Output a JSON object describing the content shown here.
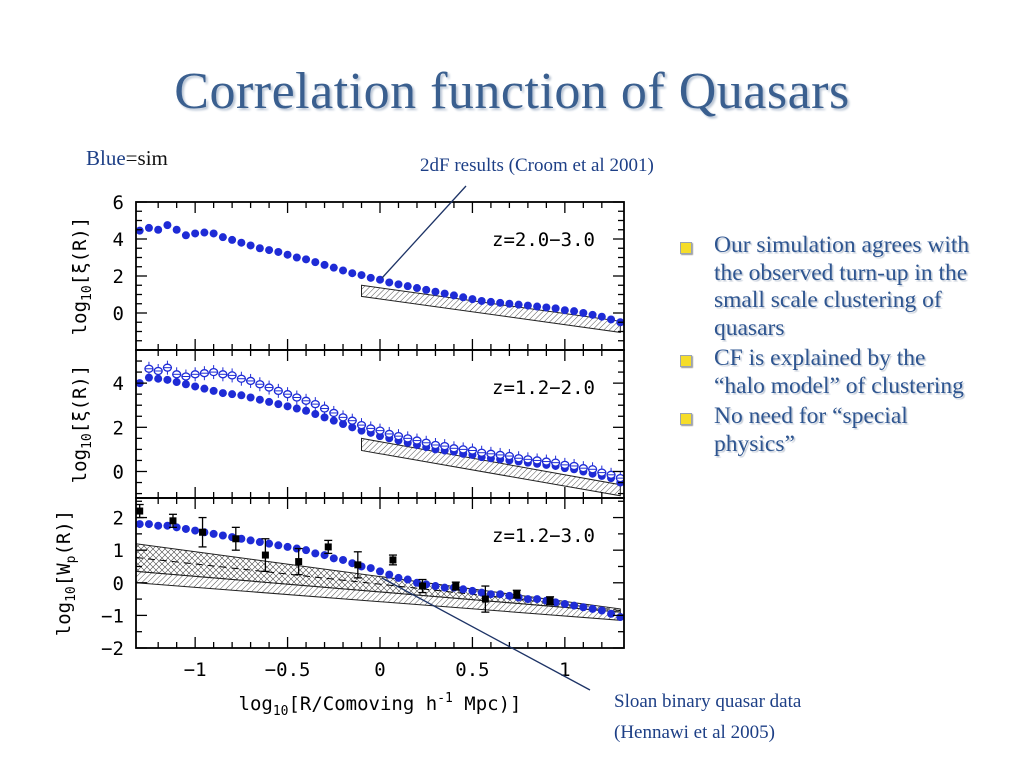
{
  "slide": {
    "title": "Correlation function of Quasars",
    "blue_label": "Blue",
    "blue_eq": "=",
    "blue_value": "sim",
    "annotation_top": "2dF results (Croom et al 2001)",
    "annotation_bottom_line1": "Sloan binary quasar data",
    "annotation_bottom_line2": "(Hennawi et al 2005)",
    "bullets": [
      "Our simulation agrees with the observed turn-up in the small scale clustering of quasars",
      "CF is explained by the “halo model” of clustering",
      "No need for “special physics”"
    ]
  },
  "colors": {
    "title": "#3a5f8f",
    "sim_points": "#1e2bd6",
    "text": "#1d3f86",
    "bullet_marker": "#f5dd2a"
  },
  "chart_data": [
    {
      "type": "scatter",
      "label": "z=2.0−3.0",
      "ylabel_prefix": "log",
      "ylabel_sub": "10",
      "ylabel_suffix": "[ξ(R)]",
      "xlim": [
        -1.32,
        1.32
      ],
      "ylim": [
        -2,
        6
      ],
      "yticks": [
        0,
        2,
        4,
        6
      ],
      "series": [
        {
          "role": "sim",
          "style": "filled",
          "x": [
            -1.3,
            -1.25,
            -1.2,
            -1.15,
            -1.1,
            -1.05,
            -1.0,
            -0.95,
            -0.9,
            -0.85,
            -0.8,
            -0.75,
            -0.7,
            -0.65,
            -0.6,
            -0.55,
            -0.5,
            -0.45,
            -0.4,
            -0.35,
            -0.3,
            -0.25,
            -0.2,
            -0.15,
            -0.1,
            -0.05,
            0.0,
            0.05,
            0.1,
            0.15,
            0.2,
            0.25,
            0.3,
            0.35,
            0.4,
            0.45,
            0.5,
            0.55,
            0.6,
            0.65,
            0.7,
            0.75,
            0.8,
            0.85,
            0.9,
            0.95,
            1.0,
            1.05,
            1.1,
            1.15,
            1.2,
            1.25,
            1.3
          ],
          "y": [
            4.45,
            4.6,
            4.5,
            4.75,
            4.5,
            4.2,
            4.3,
            4.35,
            4.3,
            4.1,
            3.95,
            3.8,
            3.65,
            3.5,
            3.4,
            3.3,
            3.15,
            3.0,
            2.9,
            2.75,
            2.6,
            2.45,
            2.3,
            2.15,
            2.05,
            1.9,
            1.8,
            1.65,
            1.55,
            1.45,
            1.35,
            1.25,
            1.15,
            1.05,
            0.95,
            0.85,
            0.75,
            0.65,
            0.6,
            0.55,
            0.5,
            0.45,
            0.4,
            0.35,
            0.3,
            0.25,
            0.15,
            0.1,
            0.0,
            -0.1,
            -0.2,
            -0.35,
            -0.5
          ]
        }
      ],
      "band": {
        "x": [
          -0.1,
          1.3
        ],
        "top": [
          1.5,
          -0.45
        ],
        "bottom": [
          0.9,
          -1.05
        ]
      }
    },
    {
      "type": "scatter",
      "label": "z=1.2−2.0",
      "ylabel_prefix": "log",
      "ylabel_sub": "10",
      "ylabel_suffix": "[ξ(R)]",
      "xlim": [
        -1.32,
        1.32
      ],
      "ylim": [
        -1.2,
        5.5
      ],
      "yticks": [
        0,
        2,
        4
      ],
      "series": [
        {
          "role": "sim-filled",
          "style": "filled",
          "x": [
            -1.3,
            -1.25,
            -1.2,
            -1.15,
            -1.1,
            -1.05,
            -1.0,
            -0.95,
            -0.9,
            -0.85,
            -0.8,
            -0.75,
            -0.7,
            -0.65,
            -0.6,
            -0.55,
            -0.5,
            -0.45,
            -0.4,
            -0.35,
            -0.3,
            -0.25,
            -0.2,
            -0.15,
            -0.1,
            -0.05,
            0.0,
            0.05,
            0.1,
            0.15,
            0.2,
            0.25,
            0.3,
            0.35,
            0.4,
            0.45,
            0.5,
            0.55,
            0.6,
            0.65,
            0.7,
            0.75,
            0.8,
            0.85,
            0.9,
            0.95,
            1.0,
            1.05,
            1.1,
            1.15,
            1.2,
            1.25,
            1.3
          ],
          "y": [
            4.0,
            4.25,
            4.2,
            4.15,
            4.05,
            3.95,
            3.85,
            3.75,
            3.65,
            3.55,
            3.5,
            3.45,
            3.35,
            3.25,
            3.15,
            3.05,
            2.95,
            2.85,
            2.75,
            2.6,
            2.45,
            2.3,
            2.15,
            2.0,
            1.85,
            1.75,
            1.6,
            1.5,
            1.4,
            1.3,
            1.2,
            1.1,
            1.0,
            0.95,
            0.9,
            0.8,
            0.75,
            0.65,
            0.6,
            0.55,
            0.5,
            0.45,
            0.4,
            0.35,
            0.3,
            0.25,
            0.15,
            0.1,
            0.0,
            -0.1,
            -0.2,
            -0.3,
            -0.5
          ]
        },
        {
          "role": "sim-open",
          "style": "open",
          "x": [
            -1.25,
            -1.2,
            -1.15,
            -1.1,
            -1.05,
            -1.0,
            -0.95,
            -0.9,
            -0.85,
            -0.8,
            -0.75,
            -0.7,
            -0.65,
            -0.6,
            -0.55,
            -0.5,
            -0.45,
            -0.4,
            -0.35,
            -0.3,
            -0.25,
            -0.2,
            -0.15,
            -0.1,
            -0.05,
            0.0,
            0.05,
            0.1,
            0.15,
            0.2,
            0.25,
            0.3,
            0.35,
            0.4,
            0.45,
            0.5,
            0.55,
            0.6,
            0.65,
            0.7,
            0.75,
            0.8,
            0.85,
            0.9,
            0.95,
            1.0,
            1.05,
            1.1,
            1.15,
            1.2,
            1.25,
            1.3
          ],
          "y": [
            4.65,
            4.55,
            4.7,
            4.4,
            4.3,
            4.4,
            4.45,
            4.5,
            4.4,
            4.35,
            4.2,
            4.1,
            3.95,
            3.8,
            3.65,
            3.5,
            3.35,
            3.2,
            3.05,
            2.85,
            2.65,
            2.45,
            2.3,
            2.1,
            1.95,
            1.85,
            1.7,
            1.6,
            1.5,
            1.4,
            1.3,
            1.2,
            1.15,
            1.05,
            1.0,
            0.95,
            0.85,
            0.8,
            0.75,
            0.7,
            0.6,
            0.55,
            0.5,
            0.45,
            0.4,
            0.3,
            0.25,
            0.15,
            0.1,
            -0.05,
            -0.15,
            -0.3
          ]
        }
      ],
      "band": {
        "x": [
          -0.1,
          1.3
        ],
        "top": [
          1.5,
          -0.6
        ],
        "bottom": [
          0.95,
          -1.1
        ]
      }
    },
    {
      "type": "scatter",
      "label": "z=1.2−3.0",
      "ylabel_prefix": "log",
      "ylabel_sub": "10",
      "ylabel_suffix": "[W",
      "ylabel_sub2": "p",
      "ylabel_suffix2": "(R)]",
      "xlabel_prefix": "log",
      "xlabel_sub": "10",
      "xlabel_suffix": "[R/Comoving h",
      "xlabel_sup": "-1",
      "xlabel_suffix2": " Mpc)]",
      "xlim": [
        -1.32,
        1.32
      ],
      "ylim": [
        -2,
        2.6
      ],
      "yticks": [
        -2,
        -1,
        0,
        1,
        2
      ],
      "xticks": [
        -1,
        -0.5,
        0,
        0.5,
        1
      ],
      "series": [
        {
          "role": "sim",
          "style": "filled",
          "x": [
            -1.3,
            -1.25,
            -1.2,
            -1.15,
            -1.1,
            -1.05,
            -1.0,
            -0.95,
            -0.9,
            -0.85,
            -0.8,
            -0.75,
            -0.7,
            -0.65,
            -0.6,
            -0.55,
            -0.5,
            -0.45,
            -0.4,
            -0.35,
            -0.3,
            -0.25,
            -0.2,
            -0.15,
            -0.1,
            -0.05,
            0.0,
            0.05,
            0.1,
            0.15,
            0.2,
            0.25,
            0.3,
            0.35,
            0.4,
            0.45,
            0.5,
            0.55,
            0.6,
            0.65,
            0.7,
            0.75,
            0.8,
            0.85,
            0.9,
            0.95,
            1.0,
            1.05,
            1.1,
            1.15,
            1.2,
            1.25,
            1.3
          ],
          "y": [
            1.8,
            1.8,
            1.75,
            1.75,
            1.7,
            1.65,
            1.6,
            1.55,
            1.5,
            1.45,
            1.4,
            1.35,
            1.3,
            1.25,
            1.2,
            1.15,
            1.1,
            1.05,
            1.0,
            0.9,
            0.85,
            0.75,
            0.7,
            0.6,
            0.5,
            0.45,
            0.35,
            0.25,
            0.15,
            0.1,
            0.0,
            -0.05,
            -0.1,
            -0.15,
            -0.15,
            -0.2,
            -0.25,
            -0.3,
            -0.35,
            -0.35,
            -0.4,
            -0.45,
            -0.5,
            -0.5,
            -0.55,
            -0.6,
            -0.65,
            -0.7,
            -0.75,
            -0.8,
            -0.85,
            -0.95,
            -1.05
          ]
        },
        {
          "role": "sloan",
          "style": "square",
          "x": [
            -1.3,
            -1.12,
            -0.96,
            -0.78,
            -0.62,
            -0.44,
            -0.28,
            -0.12,
            0.07,
            0.23,
            0.41,
            0.57,
            0.74,
            0.92
          ],
          "y": [
            2.2,
            1.9,
            1.55,
            1.35,
            0.85,
            0.65,
            1.1,
            0.55,
            0.7,
            -0.1,
            -0.1,
            -0.5,
            -0.35,
            -0.55
          ],
          "err": [
            0.2,
            0.2,
            0.45,
            0.35,
            0.5,
            0.4,
            0.2,
            0.4,
            0.15,
            0.2,
            0.12,
            0.4,
            0.12,
            0.12
          ]
        }
      ],
      "band_upper": {
        "x": [
          -1.32,
          1.3
        ],
        "top": [
          1.2,
          -0.8
        ],
        "bottom": [
          0.35,
          -0.9
        ]
      },
      "band_lower": {
        "x": [
          -1.32,
          1.3
        ],
        "top": [
          0.35,
          -0.9
        ],
        "bottom": [
          0.0,
          -1.15
        ]
      }
    }
  ]
}
